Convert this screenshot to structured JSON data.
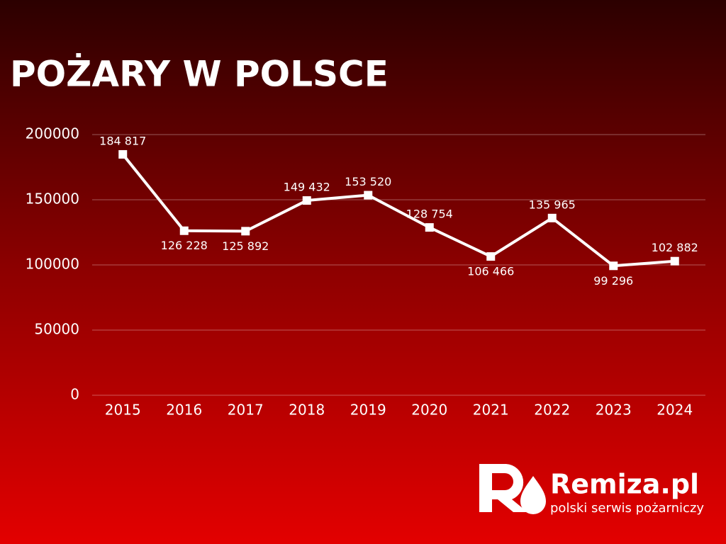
{
  "chart_data": {
    "type": "line",
    "title": "POŻARY W POLSCE",
    "categories": [
      "2015",
      "2016",
      "2017",
      "2018",
      "2019",
      "2020",
      "2021",
      "2022",
      "2023",
      "2024"
    ],
    "series": [
      {
        "color": "#ffffff",
        "values": [
          184817,
          126228,
          125892,
          149432,
          153520,
          128754,
          106466,
          135965,
          99296,
          102882
        ],
        "value_labels": [
          "184 817",
          "126 228",
          "125 892",
          "149 432",
          "153 520",
          "128 754",
          "106 466",
          "135 965",
          "99 296",
          "102 882"
        ]
      }
    ],
    "ylim": [
      0,
      200000
    ],
    "yticks": [
      0,
      50000,
      100000,
      150000,
      200000
    ],
    "grid": true
  },
  "brand": {
    "name": "Remiza.pl",
    "tagline": "polski serwis pożarniczy"
  }
}
